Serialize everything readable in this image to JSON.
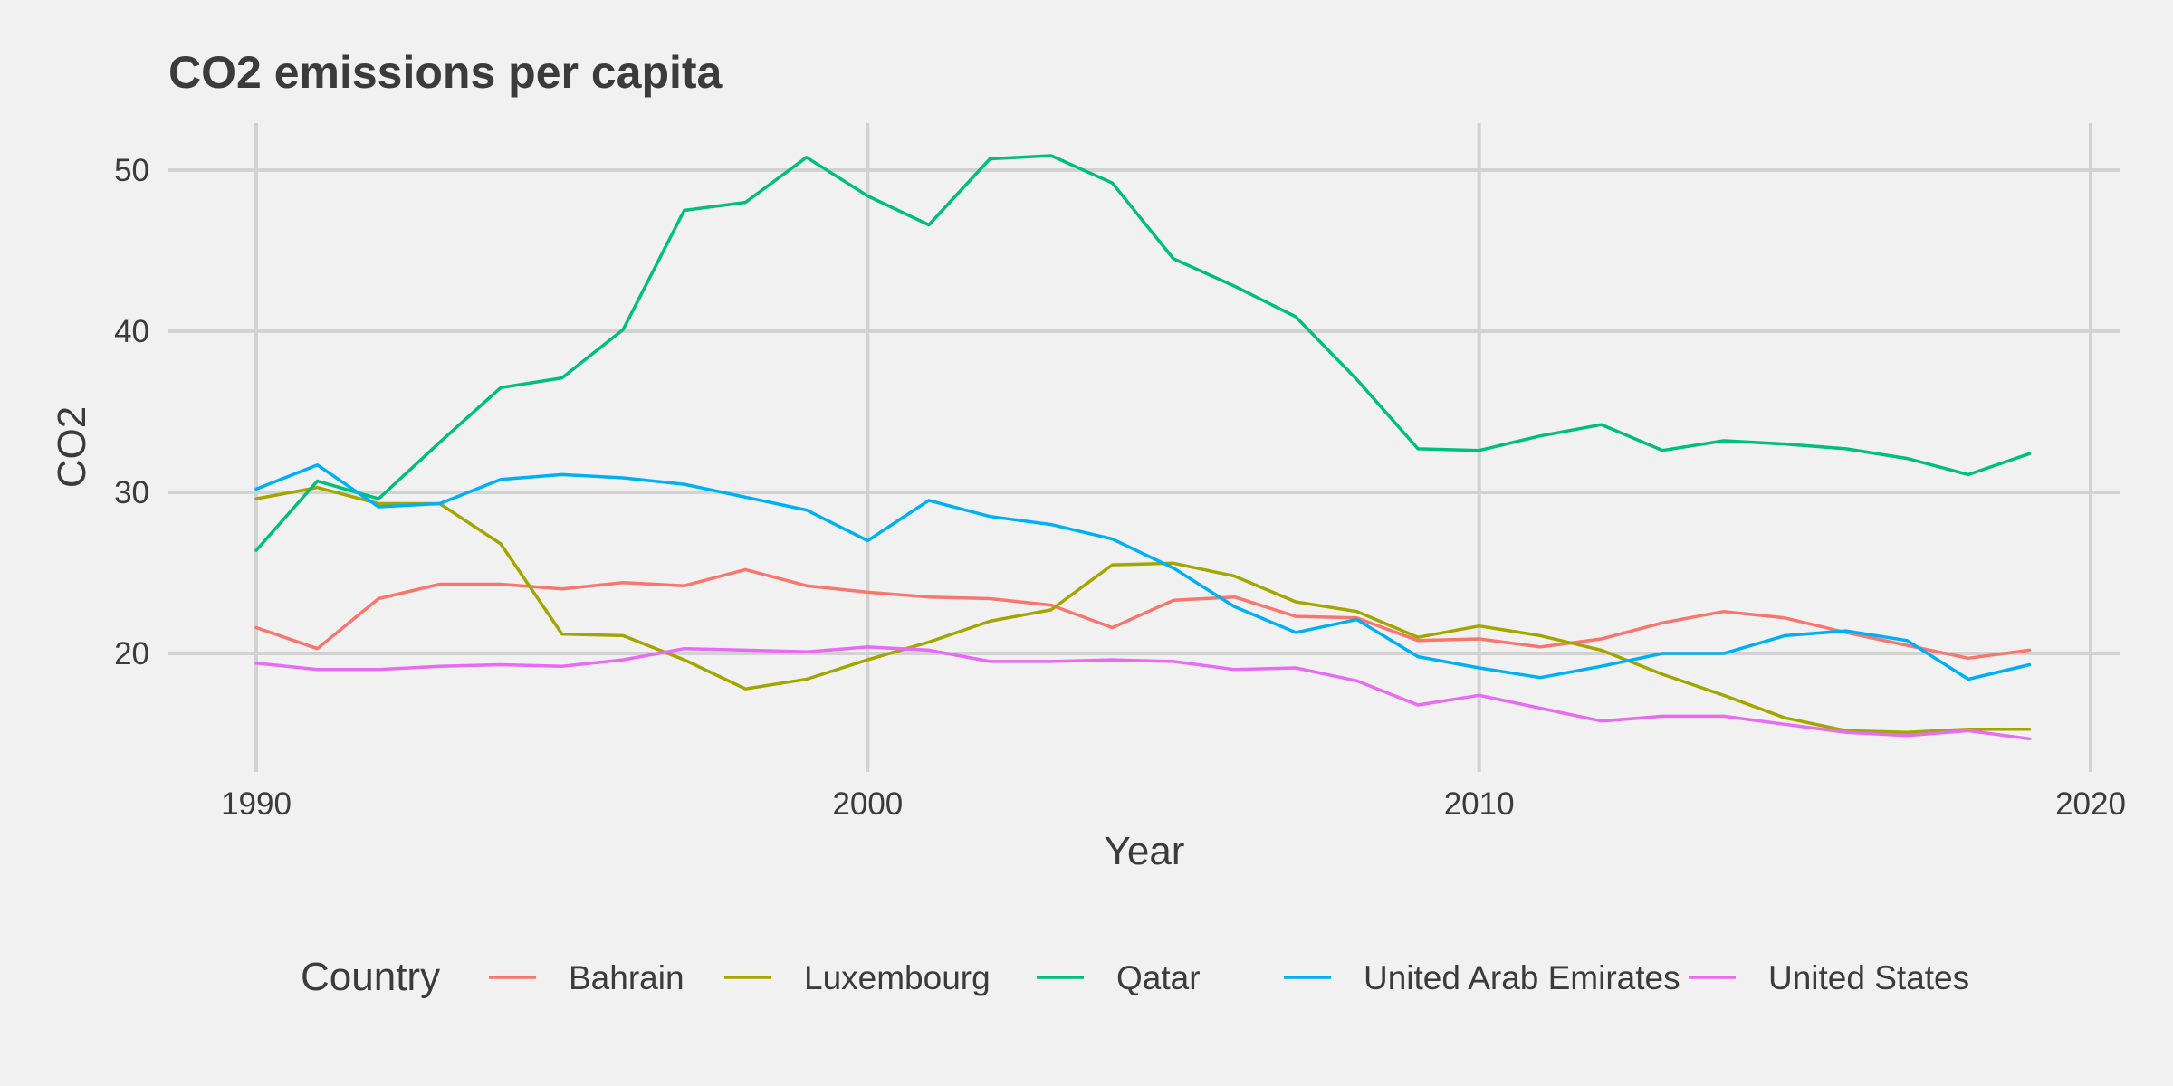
{
  "chart_data": {
    "type": "line",
    "title": "CO2 emissions per capita",
    "xlabel": "Year",
    "ylabel": "CO2",
    "xlim": [
      1989.0,
      2020.6
    ],
    "ylim": [
      13.0,
      53.0
    ],
    "xticks": [
      1990,
      2000,
      2010,
      2020
    ],
    "yticks": [
      20,
      30,
      40,
      50
    ],
    "grid": true,
    "legend": {
      "title": "Country",
      "placement": "bottom"
    },
    "x": [
      1990,
      1991,
      1992,
      1993,
      1994,
      1995,
      1996,
      1997,
      1998,
      1999,
      2000,
      2001,
      2002,
      2003,
      2004,
      2005,
      2006,
      2007,
      2008,
      2009,
      2010,
      2011,
      2012,
      2013,
      2014,
      2015,
      2016,
      2017,
      2018,
      2019
    ],
    "series": [
      {
        "name": "Bahrain",
        "color": "#f8766d",
        "values": [
          21.6,
          20.3,
          23.4,
          24.3,
          24.3,
          24.0,
          24.4,
          24.2,
          25.2,
          24.2,
          23.8,
          23.5,
          23.4,
          23.0,
          21.6,
          23.3,
          23.5,
          22.3,
          22.2,
          20.8,
          20.9,
          20.4,
          20.9,
          21.9,
          22.6,
          22.2,
          21.3,
          20.5,
          19.7,
          20.2
        ]
      },
      {
        "name": "Luxembourg",
        "color": "#a3a500",
        "values": [
          29.6,
          30.3,
          29.3,
          29.3,
          26.8,
          21.2,
          21.1,
          19.6,
          17.8,
          18.4,
          19.6,
          20.7,
          22.0,
          22.7,
          25.5,
          25.6,
          24.8,
          23.2,
          22.6,
          21.0,
          21.7,
          21.1,
          20.2,
          18.7,
          17.4,
          16.0,
          15.2,
          15.1,
          15.3,
          15.3
        ]
      },
      {
        "name": "Qatar",
        "color": "#00bf7d",
        "values": [
          26.4,
          30.7,
          29.6,
          33.1,
          36.5,
          37.1,
          40.1,
          47.5,
          48.0,
          50.8,
          48.4,
          46.6,
          50.7,
          50.9,
          49.2,
          44.5,
          42.8,
          40.9,
          37.0,
          32.7,
          32.6,
          33.5,
          34.2,
          32.6,
          33.2,
          33.0,
          32.7,
          32.1,
          31.1,
          32.4
        ]
      },
      {
        "name": "United Arab Emirates",
        "color": "#00b0f6",
        "values": [
          30.2,
          31.7,
          29.1,
          29.3,
          30.8,
          31.1,
          30.9,
          30.5,
          29.7,
          28.9,
          27.0,
          29.5,
          28.5,
          28.0,
          27.1,
          25.3,
          22.9,
          21.3,
          22.1,
          19.8,
          19.1,
          18.5,
          19.2,
          20.0,
          20.0,
          21.1,
          21.4,
          20.8,
          18.4,
          19.3
        ]
      },
      {
        "name": "United States",
        "color": "#e76bf3",
        "values": [
          19.4,
          19.0,
          19.0,
          19.2,
          19.3,
          19.2,
          19.6,
          20.3,
          20.2,
          20.1,
          20.4,
          20.2,
          19.5,
          19.5,
          19.6,
          19.5,
          19.0,
          19.1,
          18.3,
          16.8,
          17.4,
          16.6,
          15.8,
          16.1,
          16.1,
          15.6,
          15.1,
          14.9,
          15.2,
          14.7
        ]
      }
    ]
  }
}
